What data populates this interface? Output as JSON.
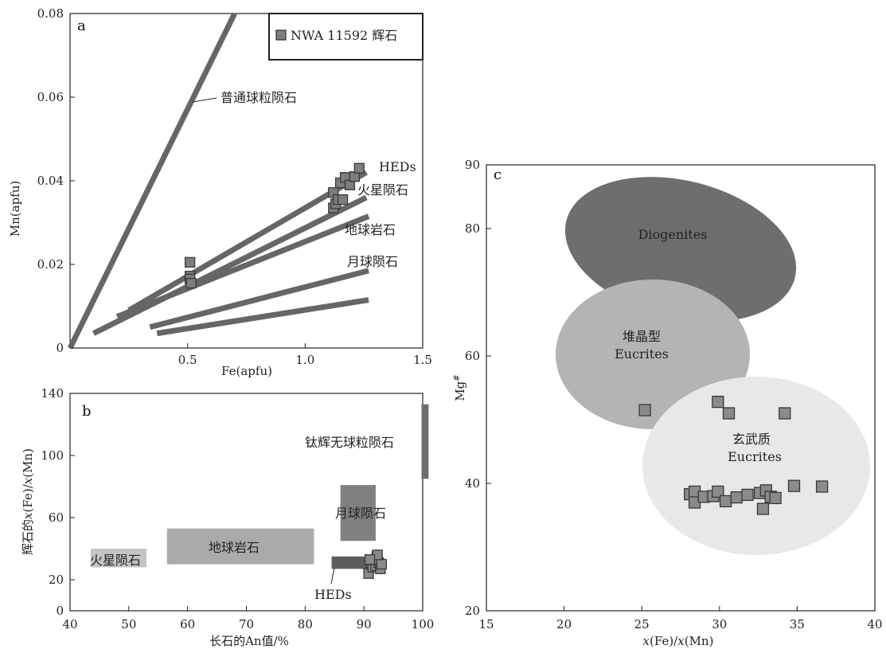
{
  "chart_data": [
    {
      "panel": "a",
      "type": "scatter",
      "xlabel": "Fe(apfu)",
      "ylabel": "Mn(apfu)",
      "xlim": [
        0,
        1.5
      ],
      "ylim": [
        0,
        0.08
      ],
      "xticks": [
        "0.5",
        "1.0",
        "1.5"
      ],
      "yticks": [
        "0",
        "0.02",
        "0.04",
        "0.06",
        "0.08"
      ],
      "legend": {
        "placement": "top-right",
        "label": "NWA 11592 辉石"
      },
      "reference_lines": [
        {
          "name": "普通球粒陨石",
          "x": [
            0,
            0.7
          ],
          "y": [
            0,
            0.08
          ]
        },
        {
          "name": "HEDs",
          "x": [
            0.25,
            1.26
          ],
          "y": [
            0.009,
            0.042
          ]
        },
        {
          "name": "火星陨石",
          "x": [
            0.1,
            1.26
          ],
          "y": [
            0.0035,
            0.036
          ]
        },
        {
          "name": "地球岩石",
          "x": [
            0.2,
            1.27
          ],
          "y": [
            0.0075,
            0.0315
          ]
        },
        {
          "name": "月球陨石",
          "x": [
            0.34,
            1.27
          ],
          "y": [
            0.005,
            0.0185
          ]
        },
        {
          "name": "",
          "x": [
            0.37,
            1.27
          ],
          "y": [
            0.0035,
            0.0115
          ]
        }
      ],
      "points": [
        [
          0.51,
          0.0205
        ],
        [
          0.51,
          0.0172
        ],
        [
          0.51,
          0.0165
        ],
        [
          0.515,
          0.0155
        ],
        [
          1.12,
          0.0335
        ],
        [
          1.13,
          0.0345
        ],
        [
          1.12,
          0.0372
        ],
        [
          1.14,
          0.0355
        ],
        [
          1.16,
          0.0355
        ],
        [
          1.15,
          0.0395
        ],
        [
          1.17,
          0.0408
        ],
        [
          1.19,
          0.039
        ],
        [
          1.21,
          0.041
        ],
        [
          1.23,
          0.043
        ]
      ],
      "labels": [
        "HEDs",
        "火星陨石",
        "地球岩石",
        "月球陨石",
        "普通球粒陨石"
      ]
    },
    {
      "panel": "b",
      "type": "scatter",
      "xlabel": "长石的An值/%",
      "ylabel": "辉石的x(Fe)/x(Mn)",
      "xlim": [
        40,
        100
      ],
      "ylim": [
        0,
        140
      ],
      "xticks": [
        "40",
        "50",
        "60",
        "70",
        "80",
        "90",
        "100"
      ],
      "yticks": [
        "0",
        "20",
        "60",
        "100",
        "140"
      ],
      "fields": [
        {
          "name": "火星陨石",
          "x": [
            43.5,
            53
          ],
          "y": [
            28,
            40
          ],
          "color": "#c4c4c4"
        },
        {
          "name": "地球岩石",
          "x": [
            56.5,
            81.5
          ],
          "y": [
            30,
            53
          ],
          "color": "#aaaaaa"
        },
        {
          "name": "月球陨石",
          "x": [
            86,
            92
          ],
          "y": [
            45,
            81
          ],
          "color": "#808080"
        },
        {
          "name": "HEDs",
          "x": [
            84.5,
            92
          ],
          "y": [
            27,
            35
          ],
          "color": "#5e5e5e"
        },
        {
          "name": "钛辉无球粒陨石",
          "x": [
            99.8,
            101
          ],
          "y": [
            85,
            133
          ],
          "color": "#6e6e6e"
        }
      ],
      "points": [
        [
          90.8,
          24
        ],
        [
          91.2,
          31
        ],
        [
          91.5,
          28
        ],
        [
          91.8,
          33
        ],
        [
          92.2,
          35
        ],
        [
          92.0,
          29
        ],
        [
          92.5,
          31
        ],
        [
          92.8,
          27
        ],
        [
          93.0,
          30
        ],
        [
          92.3,
          36
        ],
        [
          91.0,
          33
        ]
      ]
    },
    {
      "panel": "c",
      "type": "scatter",
      "xlabel": "x(Fe)/x(Mn)",
      "ylabel": "Mg#",
      "xlim": [
        15,
        40
      ],
      "ylim": [
        20,
        90
      ],
      "xticks": [
        "15",
        "20",
        "25",
        "30",
        "35",
        "40"
      ],
      "yticks": [
        "20",
        "40",
        "60",
        "80",
        "90"
      ],
      "fields": [
        {
          "name": "Diogenites",
          "label_lines": [
            "Diogenites"
          ],
          "color": "#6e6e6e"
        },
        {
          "name": "堆晶型 Eucrites",
          "label_lines": [
            "堆晶型",
            "Eucrites"
          ],
          "color": "#b4b4b4"
        },
        {
          "name": "玄武质 Eucrites",
          "label_lines": [
            "玄武质",
            "Eucrites"
          ],
          "color": "#e8e8e8"
        }
      ],
      "points": [
        [
          25.2,
          51.5
        ],
        [
          29.9,
          52.8
        ],
        [
          30.6,
          51.0
        ],
        [
          34.2,
          51.0
        ],
        [
          28.1,
          38.3
        ],
        [
          28.4,
          38.7
        ],
        [
          28.4,
          37.0
        ],
        [
          29.0,
          37.9
        ],
        [
          29.6,
          38.0
        ],
        [
          29.9,
          38.7
        ],
        [
          30.4,
          37.2
        ],
        [
          31.1,
          37.8
        ],
        [
          31.8,
          38.2
        ],
        [
          32.6,
          38.5
        ],
        [
          32.8,
          36.0
        ],
        [
          33.0,
          38.9
        ],
        [
          33.3,
          37.9
        ],
        [
          33.6,
          37.7
        ],
        [
          34.8,
          39.6
        ],
        [
          36.6,
          39.5
        ]
      ]
    }
  ]
}
